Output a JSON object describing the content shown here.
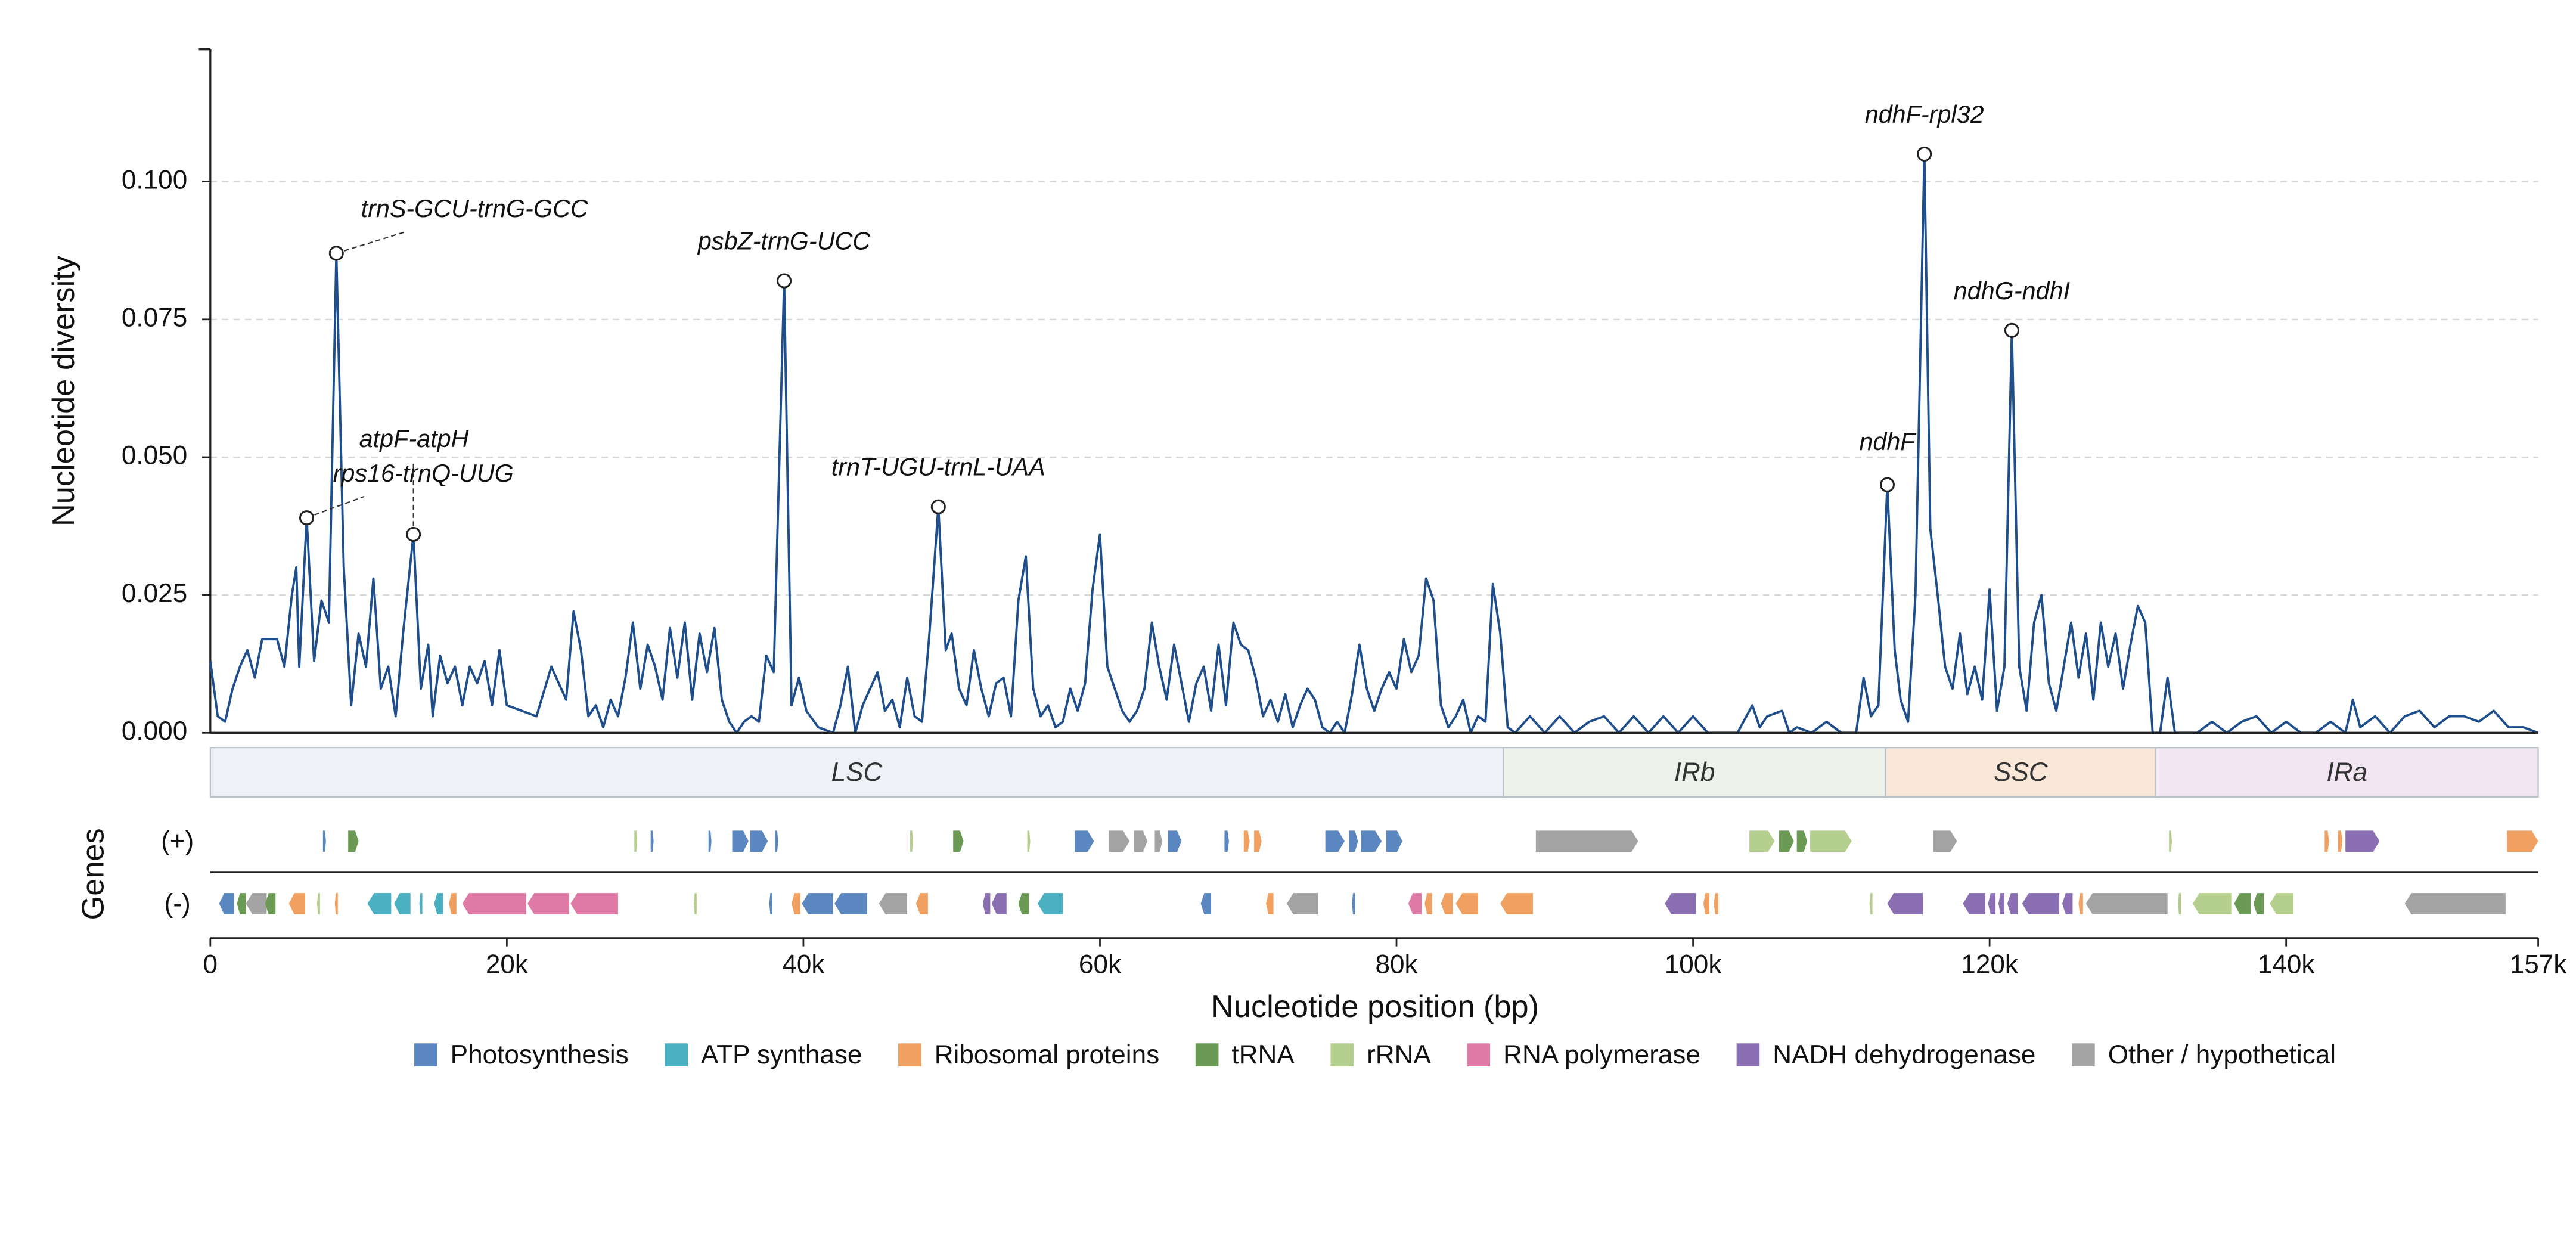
{
  "chart_data": {
    "type": "line",
    "ylabel": "Nucleotide diversity",
    "xlabel": "Nucleotide position (bp)",
    "genes_label": "Genes",
    "strand_labels": [
      "(+)",
      "(-)"
    ],
    "xlim": [
      0,
      157000
    ],
    "ylim": [
      0,
      0.124
    ],
    "xticks": [
      0,
      {
        "value": 20000,
        "label": "20k"
      },
      {
        "value": 40000,
        "label": "40k"
      },
      {
        "value": 60000,
        "label": "60k"
      },
      {
        "value": 80000,
        "label": "80k"
      },
      {
        "value": 100000,
        "label": "100k"
      },
      {
        "value": 120000,
        "label": "120k"
      },
      {
        "value": 140000,
        "label": "140k"
      },
      {
        "value": 157000,
        "label": "157k"
      }
    ],
    "yticks": [
      {
        "value": 0,
        "label": "0.000"
      },
      {
        "value": 0.025,
        "label": "0.025"
      },
      {
        "value": 0.05,
        "label": "0.050"
      },
      {
        "value": 0.075,
        "label": "0.075"
      },
      {
        "value": 0.1,
        "label": "0.100"
      }
    ],
    "grid": true,
    "color": "#1f4e8c",
    "x": [
      0,
      500,
      1000,
      1500,
      2000,
      2500,
      3000,
      3500,
      4000,
      4500,
      5000,
      5500,
      5800,
      6000,
      6500,
      7000,
      7500,
      8000,
      8500,
      9000,
      9500,
      10000,
      10500,
      11000,
      11500,
      12000,
      12500,
      13000,
      13700,
      14200,
      14700,
      15000,
      15500,
      16000,
      16500,
      17000,
      17500,
      18000,
      18500,
      19000,
      19500,
      20000,
      21000,
      22000,
      23000,
      24000,
      24500,
      25000,
      25500,
      26000,
      26500,
      27000,
      27500,
      28000,
      28500,
      29000,
      29500,
      30000,
      30500,
      31000,
      31500,
      32000,
      32500,
      33000,
      33500,
      34000,
      34500,
      35000,
      35500,
      36000,
      36500,
      37000,
      37500,
      38000,
      38700,
      39200,
      39700,
      40200,
      41000,
      42000,
      42500,
      43000,
      43500,
      44000,
      45000,
      45500,
      46000,
      46500,
      47000,
      47500,
      48000,
      48500,
      49100,
      49600,
      50000,
      50500,
      51000,
      51500,
      52000,
      52500,
      53000,
      53500,
      54000,
      54500,
      55000,
      55500,
      56000,
      56500,
      57000,
      57500,
      58000,
      58500,
      59000,
      59500,
      60000,
      60500,
      61000,
      61500,
      62000,
      62500,
      63000,
      63500,
      64000,
      64500,
      65000,
      65500,
      66000,
      66500,
      67000,
      67500,
      68000,
      68500,
      69000,
      69500,
      70000,
      70500,
      71000,
      71500,
      72000,
      72500,
      73000,
      73500,
      74000,
      74500,
      75000,
      75500,
      76000,
      76500,
      77000,
      77500,
      78000,
      78500,
      79000,
      79500,
      80000,
      80500,
      81000,
      81500,
      82000,
      82500,
      83000,
      83500,
      84000,
      84500,
      85000,
      85500,
      86000,
      86500,
      87000,
      87500,
      88000,
      89000,
      90000,
      91000,
      92000,
      93000,
      94000,
      95000,
      96000,
      97000,
      98000,
      99000,
      100000,
      101000,
      102000,
      103000,
      104000,
      104500,
      105000,
      106000,
      106500,
      107000,
      108000,
      109000,
      110000,
      111000,
      111500,
      112000,
      112500,
      113100,
      113600,
      114000,
      114500,
      115000,
      115600,
      116000,
      116500,
      117000,
      117500,
      118000,
      118500,
      119000,
      119500,
      120000,
      120500,
      121000,
      121500,
      122000,
      122500,
      123000,
      123500,
      124000,
      124500,
      125000,
      125500,
      126000,
      126500,
      127000,
      127500,
      128000,
      128500,
      129000,
      129500,
      130000,
      130500,
      131000,
      131500,
      132000,
      132500,
      133000,
      134000,
      135000,
      136000,
      137000,
      138000,
      139000,
      140000,
      141000,
      142000,
      143000,
      144000,
      144500,
      145000,
      146000,
      147000,
      148000,
      149000,
      150000,
      151000,
      152000,
      153000,
      154000,
      155000,
      156000,
      157000
    ],
    "values": [
      0.013,
      0.003,
      0.002,
      0.008,
      0.012,
      0.015,
      0.01,
      0.017,
      0.017,
      0.017,
      0.012,
      0.025,
      0.03,
      0.012,
      0.039,
      0.013,
      0.024,
      0.02,
      0.087,
      0.03,
      0.005,
      0.018,
      0.012,
      0.028,
      0.008,
      0.012,
      0.003,
      0.018,
      0.036,
      0.008,
      0.016,
      0.003,
      0.014,
      0.009,
      0.012,
      0.005,
      0.012,
      0.009,
      0.013,
      0.005,
      0.015,
      0.005,
      0.004,
      0.003,
      0.012,
      0.006,
      0.022,
      0.015,
      0.003,
      0.005,
      0.001,
      0.006,
      0.003,
      0.01,
      0.02,
      0.008,
      0.016,
      0.012,
      0.006,
      0.019,
      0.01,
      0.02,
      0.006,
      0.018,
      0.011,
      0.019,
      0.006,
      0.002,
      0,
      0.002,
      0.003,
      0.002,
      0.014,
      0.011,
      0.082,
      0.005,
      0.01,
      0.004,
      0.001,
      0,
      0.005,
      0.012,
      0,
      0.005,
      0.011,
      0.004,
      0.006,
      0.001,
      0.01,
      0.003,
      0.002,
      0.018,
      0.041,
      0.015,
      0.018,
      0.008,
      0.005,
      0.015,
      0.008,
      0.003,
      0.009,
      0.01,
      0.003,
      0.024,
      0.032,
      0.008,
      0.003,
      0.005,
      0.001,
      0.002,
      0.008,
      0.004,
      0.009,
      0.026,
      0.036,
      0.012,
      0.008,
      0.004,
      0.002,
      0.004,
      0.008,
      0.02,
      0.012,
      0.006,
      0.016,
      0.009,
      0.002,
      0.009,
      0.012,
      0.004,
      0.016,
      0.005,
      0.02,
      0.016,
      0.015,
      0.01,
      0.003,
      0.006,
      0.002,
      0.007,
      0.001,
      0.005,
      0.008,
      0.006,
      0.001,
      0,
      0.002,
      0,
      0.007,
      0.016,
      0.008,
      0.004,
      0.008,
      0.011,
      0.008,
      0.017,
      0.011,
      0.014,
      0.028,
      0.024,
      0.005,
      0.001,
      0.003,
      0.006,
      0,
      0.003,
      0.002,
      0.027,
      0.018,
      0.001,
      0,
      0.003,
      0,
      0.003,
      0,
      0.002,
      0.003,
      0,
      0.003,
      0,
      0.003,
      0,
      0.003,
      0,
      0,
      0,
      0.005,
      0.001,
      0.003,
      0.004,
      0,
      0.001,
      0,
      0.002,
      0,
      0,
      0.01,
      0.003,
      0.005,
      0.045,
      0.015,
      0.006,
      0.002,
      0.025,
      0.105,
      0.037,
      0.025,
      0.012,
      0.008,
      0.018,
      0.007,
      0.012,
      0.006,
      0.026,
      0.004,
      0.012,
      0.073,
      0.012,
      0.004,
      0.02,
      0.025,
      0.009,
      0.004,
      0.012,
      0.02,
      0.01,
      0.018,
      0.006,
      0.02,
      0.012,
      0.018,
      0.008,
      0.016,
      0.023,
      0.02,
      0,
      0,
      0.01,
      0,
      0,
      0,
      0.002,
      0,
      0.002,
      0.003,
      0,
      0.002,
      0,
      0,
      0.002,
      0,
      0.006,
      0.001,
      0.003,
      0,
      0.003,
      0.004,
      0.001,
      0.003,
      0.003,
      0.002,
      0.004,
      0.001,
      0.001,
      0
    ],
    "annotations": [
      {
        "label": "trnS-GCU-trnG-GCC",
        "x": 8500,
        "y": 0.087
      },
      {
        "label": "psbZ-trnG-UCC",
        "x": 38700,
        "y": 0.082
      },
      {
        "label": "rps16-trnQ-UUG",
        "x": 6500,
        "y": 0.039
      },
      {
        "label": "atpF-atpH",
        "x": 13700,
        "y": 0.036
      },
      {
        "label": "trnT-UGU-trnL-UAA",
        "x": 49100,
        "y": 0.041
      },
      {
        "label": "ndhF",
        "x": 113100,
        "y": 0.045
      },
      {
        "label": "ndhF-rpl32",
        "x": 115600,
        "y": 0.105
      },
      {
        "label": "ndhG-ndhI",
        "x": 121500,
        "y": 0.073
      }
    ],
    "regions": [
      {
        "label": "LSC",
        "start": 0,
        "end": 87200,
        "color": "#eef2f6"
      },
      {
        "label": "IRb",
        "start": 87200,
        "end": 113000,
        "color": "#edf3ea"
      },
      {
        "label": "SSC",
        "start": 113000,
        "end": 131200,
        "color": "#f9e8d8"
      },
      {
        "label": "IRa",
        "start": 131200,
        "end": 157000,
        "color": "#f1e6f1"
      }
    ],
    "legend": [
      {
        "name": "Photosynthesis",
        "color": "#5b87c0"
      },
      {
        "name": "ATP synthase",
        "color": "#4bb0c1"
      },
      {
        "name": "Ribosomal proteins",
        "color": "#f0a060"
      },
      {
        "name": "tRNA",
        "color": "#6a9a54"
      },
      {
        "name": "rRNA",
        "color": "#b5d08e"
      },
      {
        "name": "RNA polymerase",
        "color": "#e07aa6"
      },
      {
        "name": "NADH dehydrogenase",
        "color": "#8b6fb3"
      },
      {
        "name": "Other / hypothetical",
        "color": "#a3a3a3"
      }
    ],
    "genes": {
      "plus": [
        [
          7600,
          7800,
          0
        ],
        [
          9300,
          10000,
          3
        ],
        [
          28600,
          28800,
          4
        ],
        [
          29700,
          29900,
          0
        ],
        [
          33600,
          33800,
          0
        ],
        [
          35200,
          36300,
          0
        ],
        [
          36400,
          37600,
          0
        ],
        [
          38100,
          38300,
          0
        ],
        [
          47200,
          47400,
          4
        ],
        [
          50100,
          50800,
          3
        ],
        [
          55100,
          55300,
          4
        ],
        [
          58300,
          59600,
          0
        ],
        [
          60600,
          62000,
          7
        ],
        [
          62300,
          63200,
          7
        ],
        [
          63700,
          64200,
          7
        ],
        [
          64600,
          65500,
          0
        ],
        [
          68400,
          68700,
          0
        ],
        [
          69700,
          70100,
          2
        ],
        [
          70400,
          70900,
          2
        ],
        [
          75200,
          76500,
          0
        ],
        [
          76800,
          77400,
          0
        ],
        [
          77600,
          79000,
          0
        ],
        [
          79300,
          80400,
          0
        ],
        [
          89400,
          96300,
          7
        ],
        [
          103800,
          105500,
          4
        ],
        [
          105800,
          106800,
          3
        ],
        [
          107000,
          107700,
          3
        ],
        [
          107900,
          110700,
          4
        ],
        [
          116200,
          117800,
          7
        ],
        [
          132100,
          132300,
          4
        ],
        [
          142600,
          142900,
          2
        ],
        [
          143500,
          143800,
          2
        ],
        [
          144000,
          146300,
          6
        ],
        [
          154900,
          157000,
          2
        ]
      ],
      "minus": [
        [
          600,
          1600,
          0
        ],
        [
          1800,
          2400,
          3
        ],
        [
          2400,
          3800,
          7
        ],
        [
          3700,
          4400,
          3
        ],
        [
          5300,
          6400,
          2
        ],
        [
          7200,
          7400,
          4
        ],
        [
          8400,
          8600,
          2
        ],
        [
          10600,
          12200,
          1
        ],
        [
          12400,
          13500,
          1
        ],
        [
          14100,
          14300,
          1
        ],
        [
          15100,
          15700,
          1
        ],
        [
          16100,
          16600,
          2
        ],
        [
          17000,
          21300,
          5
        ],
        [
          21400,
          24200,
          5
        ],
        [
          24300,
          27500,
          5
        ],
        [
          32600,
          32800,
          4
        ],
        [
          37700,
          37900,
          0
        ],
        [
          39200,
          39800,
          2
        ],
        [
          39900,
          42000,
          0
        ],
        [
          42100,
          44300,
          0
        ],
        [
          45100,
          47000,
          7
        ],
        [
          47600,
          48400,
          2
        ],
        [
          52100,
          52600,
          6
        ],
        [
          52700,
          53700,
          6
        ],
        [
          54500,
          55200,
          3
        ],
        [
          55800,
          57500,
          1
        ],
        [
          66800,
          67500,
          0
        ],
        [
          71200,
          71700,
          2
        ],
        [
          72600,
          74700,
          7
        ],
        [
          77000,
          77200,
          0
        ],
        [
          80800,
          81700,
          5
        ],
        [
          81900,
          82400,
          2
        ],
        [
          83000,
          83800,
          2
        ],
        [
          84000,
          85500,
          2
        ],
        [
          87000,
          89200,
          2
        ],
        [
          98100,
          100200,
          6
        ],
        [
          100700,
          101100,
          2
        ],
        [
          101400,
          101700,
          2
        ],
        [
          111900,
          112100,
          4
        ],
        [
          113100,
          115500,
          6
        ],
        [
          118200,
          119700,
          6
        ],
        [
          119900,
          120400,
          6
        ],
        [
          120600,
          121000,
          6
        ],
        [
          121200,
          121900,
          6
        ],
        [
          122200,
          124700,
          6
        ],
        [
          124900,
          125600,
          6
        ],
        [
          126000,
          126300,
          2
        ],
        [
          126500,
          132000,
          7
        ],
        [
          132700,
          132900,
          4
        ],
        [
          133700,
          136300,
          4
        ],
        [
          136500,
          137600,
          3
        ],
        [
          137800,
          138500,
          3
        ],
        [
          138900,
          140500,
          4
        ],
        [
          148000,
          154800,
          7
        ]
      ]
    }
  }
}
